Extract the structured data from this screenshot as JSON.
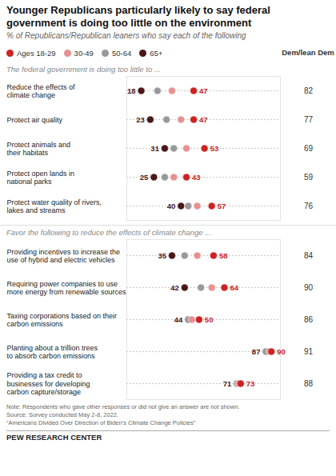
{
  "title": "Younger Republicans particularly likely to say federal\ngovernment is doing too little on the environment",
  "subtitle": "% of Republicans/Republican leaners who say each of the following",
  "chart_data": [
    {
      "type": "dot",
      "title": "The federal government is doing too little to ...",
      "legend": "top",
      "xlim": [
        10,
        95
      ],
      "tick_labels": false,
      "categories": [
        "Reduce the effects of\nclimate change",
        "Protect air quality",
        "Protect animals and\ntheir habitats",
        "Protect open lands in\nnational parks",
        "Protect water quality of rivers,\nlakes and streams"
      ],
      "series": [
        {
          "name": "Ages 18-29",
          "color": "#cc2222",
          "values": [
            47,
            47,
            53,
            43,
            57
          ],
          "data_labels": true
        },
        {
          "name": "30-49",
          "color": "#e89090",
          "values": [
            35,
            40,
            43,
            36,
            49
          ]
        },
        {
          "name": "50-64",
          "color": "#999999",
          "values": [
            27,
            32,
            36,
            31,
            44
          ]
        },
        {
          "name": "65+",
          "color": "#4a1818",
          "values": [
            18,
            23,
            31,
            25,
            40
          ],
          "data_labels": true
        },
        {
          "name": "Dem/lean Dem",
          "type": "text",
          "values": [
            82,
            77,
            69,
            59,
            76
          ],
          "data_labels": true
        }
      ]
    },
    {
      "type": "dot",
      "title": "Favor the following to reduce the effects of climate change ...",
      "xlim": [
        10,
        95
      ],
      "tick_labels": false,
      "categories": [
        "Providing incentives to increase the\nuse of hybrid and electric vehicles",
        "Requiring power companies to use\nmore energy from renewable sources",
        "Taxing corporations based on their\ncarbon emissions",
        "Planting about a trillion trees\nto absorb carbon emissions",
        "Providing a tax credit to\nbusinesses for developing\ncarbon capture/storage"
      ],
      "series": [
        {
          "name": "Ages 18-29",
          "color": "#cc2222",
          "values": [
            58,
            64,
            50,
            90,
            73
          ],
          "data_labels": true
        },
        {
          "name": "30-49",
          "color": "#e89090",
          "values": [
            49,
            57,
            46,
            89,
            72
          ]
        },
        {
          "name": "50-64",
          "color": "#999999",
          "values": [
            42,
            51,
            44,
            87,
            71
          ]
        },
        {
          "name": "65+",
          "color": "#4a1818",
          "values": [
            35,
            42,
            44,
            87,
            71
          ],
          "data_labels": true
        },
        {
          "name": "Dem/lean Dem",
          "type": "text",
          "values": [
            84,
            90,
            86,
            91,
            88
          ],
          "data_labels": true
        }
      ]
    }
  ],
  "note": "Note: Respondents who gave other responses or did not give an answer are not shown.\nSource: Survey conducted May 2-8, 2022.\n“Americans Divided Over Direction of Biden’s Climate Change Policies”",
  "footer": "PEW RESEARCH CENTER"
}
